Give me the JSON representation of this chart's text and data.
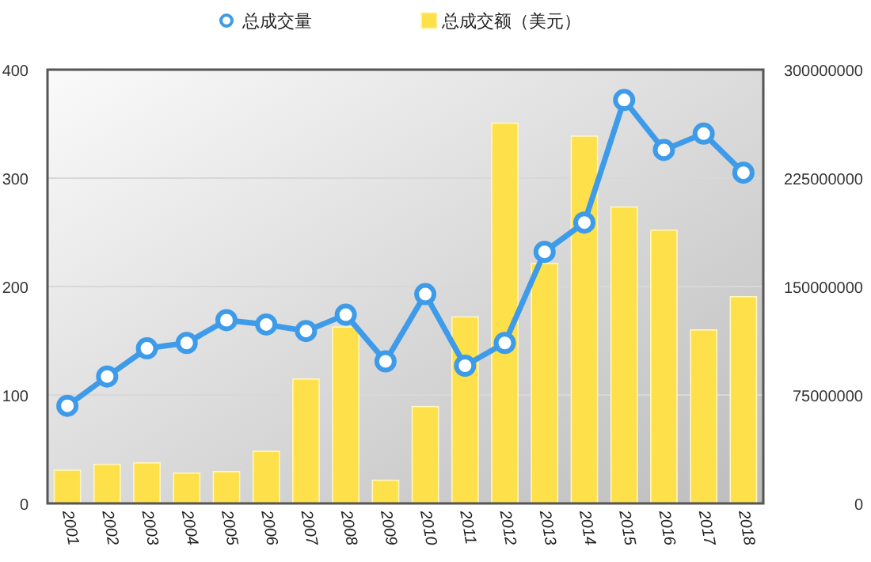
{
  "chart_data": {
    "type": "bar",
    "categories": [
      "2001",
      "2002",
      "2003",
      "2004",
      "2005",
      "2006",
      "2007",
      "2008",
      "2009",
      "2010",
      "2011",
      "2012",
      "2013",
      "2014",
      "2015",
      "2016",
      "2017",
      "2018"
    ],
    "series": [
      {
        "name": "总成交量",
        "type": "line",
        "color": "#3d9be9",
        "marker": "circle",
        "values": [
          90,
          117,
          143,
          148,
          169,
          165,
          159,
          174,
          131,
          193,
          127,
          148,
          232,
          259,
          372,
          326,
          341,
          305
        ]
      },
      {
        "name": "总成交额（美元）",
        "axis": "y2",
        "color": "#fde04a",
        "values": [
          23000000,
          27000000,
          28000000,
          21000000,
          22000000,
          36000000,
          86000000,
          122000000,
          16000000,
          67000000,
          129000000,
          263000000,
          166000000,
          254000000,
          205000000,
          189000000,
          120000000,
          143000000
        ]
      }
    ],
    "ylim": [
      0,
      400
    ],
    "yticks": [
      0,
      100,
      200,
      300,
      400
    ],
    "y2lim": [
      0,
      300000000
    ],
    "y2ticks": [
      0,
      75000000,
      150000000,
      225000000,
      300000000
    ],
    "grid": "y",
    "legend": "top"
  }
}
